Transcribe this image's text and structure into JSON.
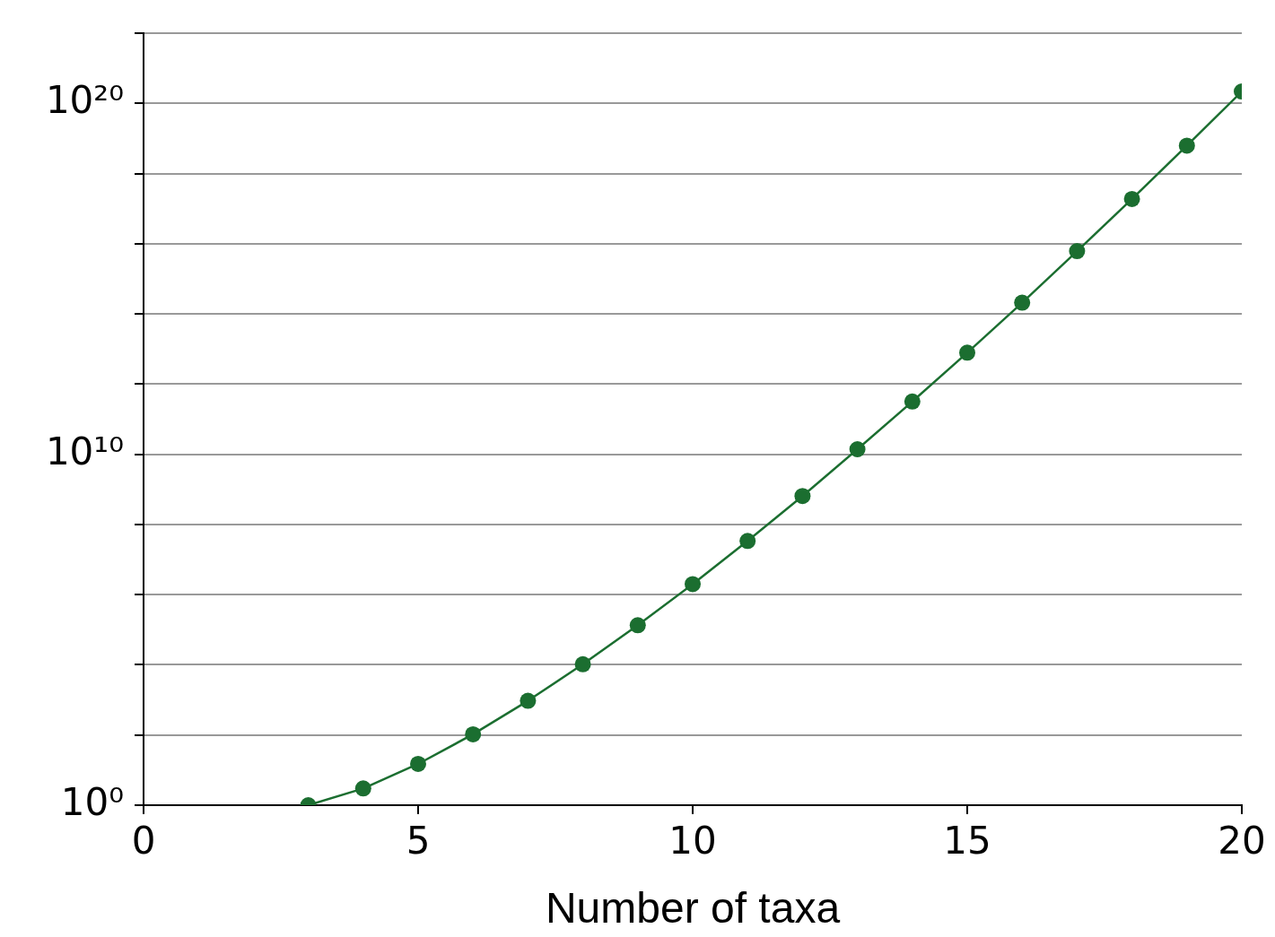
{
  "chart_data": {
    "type": "line",
    "xlabel": "Number of taxa",
    "x": [
      3,
      4,
      5,
      6,
      7,
      8,
      9,
      10,
      11,
      12,
      13,
      14,
      15,
      16,
      17,
      18,
      19,
      20
    ],
    "series": [
      {
        "color": "#1b6e30",
        "values": [
          1,
          3,
          15,
          105,
          945,
          10400,
          135000,
          2000000.0,
          34000000.0,
          650000000.0,
          14000000000.0,
          320000000000.0,
          7900000000000.0,
          210000000000000.0,
          6200000000000000.0,
          1.9e+17,
          6.3e+18,
          2.2e+20
        ]
      }
    ],
    "log": "y",
    "xlim": [
      0,
      20
    ],
    "xticks": [
      0,
      5,
      10,
      15,
      20
    ],
    "ylim": [
      1,
      1e+22
    ],
    "yticks": [
      {
        "value": 1,
        "label": "10⁰"
      },
      {
        "value": 100.0,
        "label": null
      },
      {
        "value": 10000.0,
        "label": null
      },
      {
        "value": 1000000.0,
        "label": null
      },
      {
        "value": 100000000.0,
        "label": null
      },
      {
        "value": 10000000000.0,
        "label": "10¹⁰"
      },
      {
        "value": 1000000000000.0,
        "label": null
      },
      {
        "value": 100000000000000.0,
        "label": null
      },
      {
        "value": 1e+16,
        "label": null
      },
      {
        "value": 1e+18,
        "label": null
      },
      {
        "value": 1e+20,
        "label": "10²⁰"
      },
      {
        "value": 1e+22,
        "label": null
      }
    ],
    "grid": "y",
    "legend": false,
    "marker": "circle",
    "line_style": "solid"
  }
}
